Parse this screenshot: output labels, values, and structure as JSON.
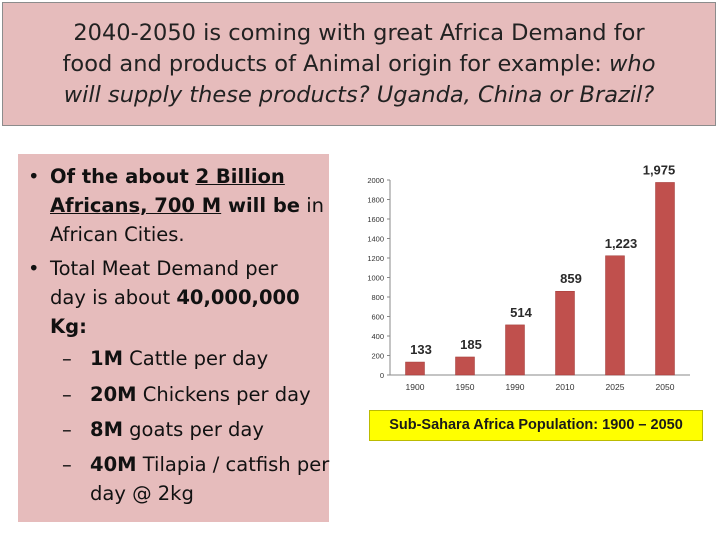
{
  "slide": {
    "title_line1": "2040-2050 is coming with great Africa Demand for",
    "title_line2_plain": "food and products of Animal origin for example: ",
    "title_line2_italic": "who",
    "title_line3_italic": "will supply these products? Uganda, China or Brazil?"
  },
  "bullets": {
    "b1": {
      "bold_prefix": "Of the about ",
      "bold_u1": "2 Billion",
      "bold_mid": " ",
      "bold_u2": "Africans, 700 M",
      "bold_suffix": " will be",
      "plain": "in African Cities."
    },
    "b2": {
      "line1": "Total Meat Demand per",
      "line2_plain": "day is about ",
      "line2_bold": "40,000,000",
      "line3_bold": "Kg:"
    },
    "subs": [
      {
        "dash": "–",
        "bold": "1M",
        "rest": " Cattle per day"
      },
      {
        "dash": "–",
        "bold": "20M",
        "rest": " Chickens per day"
      },
      {
        "dash": "–",
        "bold": "8M",
        "rest": " goats per day"
      },
      {
        "dash": "–",
        "bold": "40M",
        "rest": " Tilapia / catfish per",
        "rest2": "day @ 2kg"
      }
    ]
  },
  "chart_data": {
    "type": "bar",
    "categories": [
      "1900",
      "1950",
      "1990",
      "2010",
      "2025",
      "2050"
    ],
    "values": [
      133,
      185,
      514,
      859,
      1223,
      1975
    ],
    "value_labels": [
      "133",
      "185",
      "514",
      "859",
      "1,223",
      "1,975"
    ],
    "y_ticks": [
      "0",
      "200",
      "400",
      "600",
      "800",
      "1000",
      "1200",
      "1400",
      "1600",
      "1800",
      "2000"
    ],
    "ylim": [
      0,
      2000
    ],
    "bar_color": "#c0504d",
    "grid": false,
    "caption": "Sub-Sahara Africa Population: 1900 – 2050"
  },
  "colors": {
    "panel": "#e6bcbc",
    "caption_bg": "#ffff00"
  }
}
